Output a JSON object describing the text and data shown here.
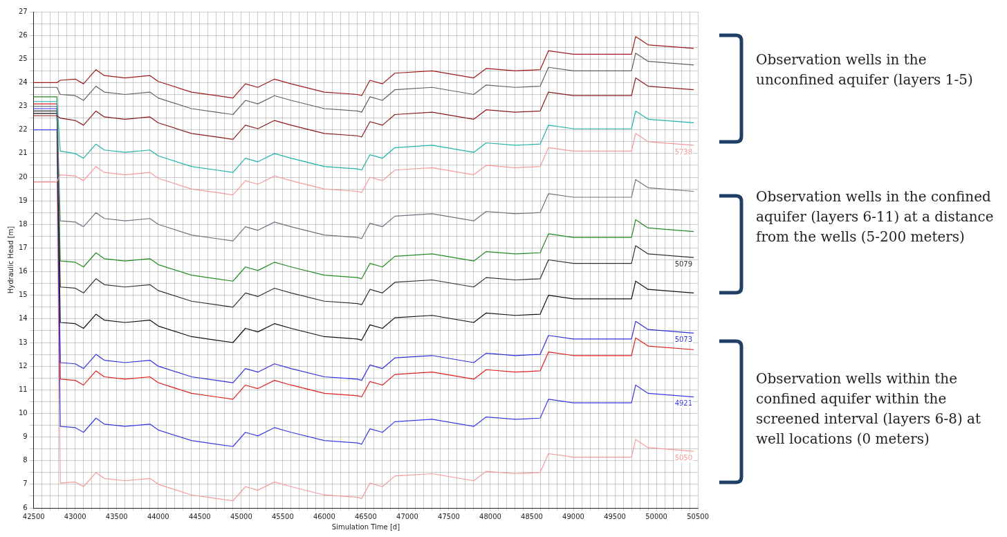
{
  "chart_data": {
    "type": "line",
    "xlabel": "Simulation Time [d]",
    "ylabel": "Hydraulic Head [m]",
    "xlim": [
      42500,
      50500
    ],
    "xticks": [
      42500,
      {
        "value": 42600,
        "label": null
      },
      {
        "value": 42700,
        "label": null
      },
      {
        "value": 42800,
        "label": null
      },
      {
        "value": 42900,
        "label": null
      },
      43000,
      {
        "value": 43100,
        "label": null
      },
      {
        "value": 43200,
        "label": null
      },
      {
        "value": 43300,
        "label": null
      },
      {
        "value": 43400,
        "label": null
      },
      43500,
      {
        "value": 43600,
        "label": null
      },
      {
        "value": 43700,
        "label": null
      },
      {
        "value": 43800,
        "label": null
      },
      {
        "value": 43900,
        "label": null
      },
      44000,
      {
        "value": 44100,
        "label": null
      },
      {
        "value": 44200,
        "label": null
      },
      {
        "value": 44300,
        "label": null
      },
      {
        "value": 44400,
        "label": null
      },
      44500,
      {
        "value": 44600,
        "label": null
      },
      {
        "value": 44700,
        "label": null
      },
      {
        "value": 44800,
        "label": null
      },
      {
        "value": 44900,
        "label": null
      },
      45000,
      {
        "value": 45100,
        "label": null
      },
      {
        "value": 45200,
        "label": null
      },
      {
        "value": 45300,
        "label": null
      },
      {
        "value": 45400,
        "label": null
      },
      45500,
      {
        "value": 45600,
        "label": null
      },
      {
        "value": 45700,
        "label": null
      },
      {
        "value": 45800,
        "label": null
      },
      {
        "value": 45900,
        "label": null
      },
      46000,
      {
        "value": 46100,
        "label": null
      },
      {
        "value": 46200,
        "label": null
      },
      {
        "value": 46300,
        "label": null
      },
      {
        "value": 46400,
        "label": null
      },
      46500,
      {
        "value": 46600,
        "label": null
      },
      {
        "value": 46700,
        "label": null
      },
      {
        "value": 46800,
        "label": null
      },
      {
        "value": 46900,
        "label": null
      },
      47000,
      {
        "value": 47100,
        "label": null
      },
      {
        "value": 47200,
        "label": null
      },
      {
        "value": 47300,
        "label": null
      },
      {
        "value": 47400,
        "label": null
      },
      47500,
      {
        "value": 47600,
        "label": null
      },
      {
        "value": 47700,
        "label": null
      },
      {
        "value": 47800,
        "label": null
      },
      {
        "value": 47900,
        "label": null
      },
      48000,
      {
        "value": 48100,
        "label": null
      },
      {
        "value": 48200,
        "label": null
      },
      {
        "value": 48300,
        "label": null
      },
      {
        "value": 48400,
        "label": null
      },
      48500,
      {
        "value": 48600,
        "label": null
      },
      {
        "value": 48700,
        "label": null
      },
      {
        "value": 48800,
        "label": null
      },
      {
        "value": 48900,
        "label": null
      },
      49000,
      {
        "value": 49100,
        "label": null
      },
      {
        "value": 49200,
        "label": null
      },
      {
        "value": 49300,
        "label": null
      },
      {
        "value": 49400,
        "label": null
      },
      49500,
      {
        "value": 49600,
        "label": null
      },
      {
        "value": 49700,
        "label": null
      },
      {
        "value": 49800,
        "label": null
      },
      {
        "value": 49900,
        "label": null
      },
      50000,
      {
        "value": 50100,
        "label": null
      },
      {
        "value": 50200,
        "label": null
      },
      {
        "value": 50300,
        "label": null
      },
      {
        "value": 50400,
        "label": null
      },
      50500
    ],
    "ylim": [
      6,
      27
    ],
    "yticks": [
      6,
      {
        "value": 6.5,
        "label": null
      },
      7,
      {
        "value": 7.5,
        "label": null
      },
      8,
      {
        "value": 8.5,
        "label": null
      },
      9,
      {
        "value": 9.5,
        "label": null
      },
      10,
      {
        "value": 10.5,
        "label": null
      },
      11,
      {
        "value": 11.5,
        "label": null
      },
      12,
      {
        "value": 12.5,
        "label": null
      },
      13,
      {
        "value": 13.5,
        "label": null
      },
      14,
      {
        "value": 14.5,
        "label": null
      },
      15,
      {
        "value": 15.5,
        "label": null
      },
      16,
      {
        "value": 16.5,
        "label": null
      },
      17,
      {
        "value": 17.5,
        "label": null
      },
      18,
      {
        "value": 18.5,
        "label": null
      },
      19,
      {
        "value": 19.5,
        "label": null
      },
      20,
      {
        "value": 20.5,
        "label": null
      },
      21,
      {
        "value": 21.5,
        "label": null
      },
      22,
      {
        "value": 22.5,
        "label": null
      },
      23,
      {
        "value": 23.5,
        "label": null
      },
      24,
      {
        "value": 24.5,
        "label": null
      },
      25,
      {
        "value": 25.5,
        "label": null
      },
      26,
      {
        "value": 26.5,
        "label": null
      },
      27
    ],
    "grid": true,
    "legend": false,
    "marker": "none",
    "line_style": "solid",
    "x": [
      42500,
      42780,
      42820,
      43000,
      43100,
      43250,
      43350,
      43600,
      43900,
      44000,
      44400,
      44700,
      44900,
      45050,
      45200,
      45400,
      45600,
      46000,
      46400,
      46450,
      46550,
      46700,
      46850,
      47300,
      47800,
      47950,
      48300,
      48600,
      48700,
      49000,
      49700,
      49750,
      49900,
      50450
    ],
    "series": [
      {
        "color": "#a01818",
        "values": [
          24.0,
          24.0,
          24.1,
          24.15,
          23.95,
          24.55,
          24.3,
          24.2,
          24.3,
          24.05,
          23.6,
          23.45,
          23.35,
          23.95,
          23.8,
          24.15,
          23.95,
          23.6,
          23.5,
          23.45,
          24.1,
          23.95,
          24.4,
          24.5,
          24.2,
          24.6,
          24.5,
          24.55,
          25.35,
          25.2,
          25.2,
          25.95,
          25.6,
          25.45
        ]
      },
      {
        "color": "#606060",
        "values": [
          23.8,
          23.8,
          23.5,
          23.45,
          23.25,
          23.85,
          23.6,
          23.5,
          23.6,
          23.35,
          22.9,
          22.75,
          22.65,
          23.25,
          23.1,
          23.45,
          23.25,
          22.9,
          22.8,
          22.75,
          23.4,
          23.25,
          23.7,
          23.8,
          23.5,
          23.9,
          23.8,
          23.85,
          24.65,
          24.5,
          24.5,
          25.25,
          24.9,
          24.75
        ]
      },
      {
        "color": "#8b1a1a",
        "values": [
          22.6,
          22.6,
          22.5,
          22.4,
          22.2,
          22.8,
          22.55,
          22.45,
          22.55,
          22.3,
          21.85,
          21.7,
          21.6,
          22.2,
          22.05,
          22.4,
          22.2,
          21.85,
          21.75,
          21.7,
          22.35,
          22.2,
          22.65,
          22.75,
          22.45,
          22.85,
          22.75,
          22.8,
          23.6,
          23.45,
          23.45,
          24.2,
          23.85,
          23.7
        ]
      },
      {
        "color": "#20b2aa",
        "values": [
          23.2,
          23.2,
          21.1,
          21.0,
          20.8,
          21.4,
          21.15,
          21.05,
          21.15,
          20.9,
          20.45,
          20.3,
          20.2,
          20.8,
          20.65,
          21.0,
          20.8,
          20.45,
          20.35,
          20.3,
          20.95,
          20.8,
          21.25,
          21.35,
          21.05,
          21.45,
          21.35,
          21.4,
          22.2,
          22.05,
          22.05,
          22.8,
          22.45,
          22.3
        ]
      },
      {
        "name": "5738",
        "color": "#f49a9a",
        "values": [
          19.8,
          19.8,
          20.1,
          20.05,
          19.85,
          20.45,
          20.2,
          20.1,
          20.2,
          19.95,
          19.5,
          19.35,
          19.25,
          19.85,
          19.7,
          20.05,
          19.85,
          19.5,
          19.4,
          19.35,
          20.0,
          19.85,
          20.3,
          20.4,
          20.1,
          20.5,
          20.4,
          20.45,
          21.25,
          21.1,
          21.1,
          21.85,
          21.5,
          21.35
        ]
      },
      {
        "color": "#707080",
        "values": [
          23.0,
          23.0,
          18.15,
          18.1,
          17.9,
          18.5,
          18.25,
          18.15,
          18.25,
          18.0,
          17.55,
          17.4,
          17.3,
          17.9,
          17.75,
          18.1,
          17.9,
          17.55,
          17.45,
          17.4,
          18.05,
          17.9,
          18.35,
          18.45,
          18.15,
          18.55,
          18.45,
          18.5,
          19.3,
          19.15,
          19.15,
          19.9,
          19.55,
          19.4
        ]
      },
      {
        "color": "#228b22",
        "values": [
          23.4,
          23.4,
          16.45,
          16.4,
          16.2,
          16.8,
          16.55,
          16.45,
          16.55,
          16.3,
          15.85,
          15.7,
          15.6,
          16.2,
          16.05,
          16.4,
          16.2,
          15.85,
          15.75,
          15.7,
          16.35,
          16.2,
          16.65,
          16.75,
          16.45,
          16.85,
          16.75,
          16.8,
          17.6,
          17.45,
          17.45,
          18.2,
          17.85,
          17.7
        ]
      },
      {
        "name": "5079",
        "color": "#303030",
        "values": [
          22.8,
          22.8,
          15.35,
          15.3,
          15.1,
          15.7,
          15.45,
          15.35,
          15.45,
          15.2,
          14.75,
          14.6,
          14.5,
          15.1,
          14.95,
          15.3,
          15.1,
          14.75,
          14.65,
          14.6,
          15.25,
          15.1,
          15.55,
          15.65,
          15.35,
          15.75,
          15.65,
          15.7,
          16.5,
          16.35,
          16.35,
          17.1,
          16.75,
          16.6
        ]
      },
      {
        "color": "#101010",
        "values": [
          22.7,
          22.7,
          13.85,
          13.8,
          13.6,
          14.2,
          13.95,
          13.85,
          13.95,
          13.7,
          13.25,
          13.1,
          13.0,
          13.6,
          13.45,
          13.8,
          13.6,
          13.25,
          13.15,
          13.1,
          13.75,
          13.6,
          14.05,
          14.15,
          13.85,
          14.25,
          14.15,
          14.2,
          15.0,
          14.85,
          14.85,
          15.6,
          15.25,
          15.1
        ]
      },
      {
        "name": "5073",
        "color": "#3030e0",
        "values": [
          22.9,
          22.9,
          12.15,
          12.1,
          11.9,
          12.5,
          12.25,
          12.15,
          12.25,
          12.0,
          11.55,
          11.4,
          11.3,
          11.9,
          11.75,
          12.1,
          11.9,
          11.55,
          11.45,
          11.4,
          12.05,
          11.9,
          12.35,
          12.45,
          12.15,
          12.55,
          12.45,
          12.5,
          13.3,
          13.15,
          13.15,
          13.9,
          13.55,
          13.4
        ]
      },
      {
        "color": "#e02020",
        "values": [
          23.1,
          23.1,
          11.45,
          11.4,
          11.2,
          11.8,
          11.55,
          11.45,
          11.55,
          11.3,
          10.85,
          10.7,
          10.6,
          11.2,
          11.05,
          11.4,
          11.2,
          10.85,
          10.75,
          10.7,
          11.35,
          11.2,
          11.65,
          11.75,
          11.45,
          11.85,
          11.75,
          11.8,
          12.6,
          12.45,
          12.45,
          13.2,
          12.85,
          12.7
        ]
      },
      {
        "name": "4921",
        "color": "#3a3ae8",
        "values": [
          22.0,
          22.0,
          9.45,
          9.4,
          9.2,
          9.8,
          9.55,
          9.45,
          9.55,
          9.3,
          8.85,
          8.7,
          8.6,
          9.2,
          9.05,
          9.4,
          9.2,
          8.85,
          8.75,
          8.7,
          9.35,
          9.2,
          9.65,
          9.75,
          9.45,
          9.85,
          9.75,
          9.8,
          10.6,
          10.45,
          10.45,
          11.2,
          10.85,
          10.7
        ]
      },
      {
        "name": "5050",
        "color": "#f49a9a",
        "values": [
          19.8,
          19.8,
          7.05,
          7.1,
          6.9,
          7.5,
          7.25,
          7.15,
          7.25,
          7.0,
          6.55,
          6.4,
          6.3,
          6.9,
          6.75,
          7.1,
          6.9,
          6.55,
          6.45,
          6.4,
          7.05,
          6.9,
          7.35,
          7.45,
          7.15,
          7.55,
          7.45,
          7.5,
          8.3,
          8.15,
          8.15,
          8.9,
          8.55,
          8.4
        ]
      }
    ],
    "annotations": [
      "Observation wells in the unconfined aquifer (layers 1-5)",
      "Observation wells in the confined aquifer (layers 6-11) at a distance from the wells (5-200 meters)",
      "Observation wells within the confined aquifer within the screened interval (layers 6-8) at well locations (0 meters)"
    ]
  }
}
